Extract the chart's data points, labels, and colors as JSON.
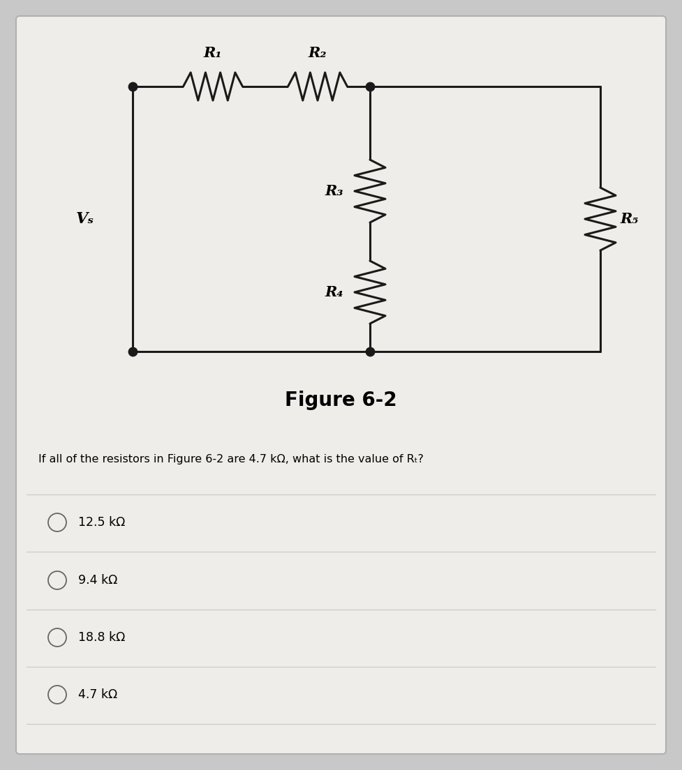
{
  "bg_color": "#c8c8c8",
  "card_color": "#eeede9",
  "figure_title": "Figure 6-2",
  "question_text": "If all of the resistors in Figure 6-2 are 4.7 kΩ, what is the value of Rₜ?",
  "choices": [
    "12.5 kΩ",
    "9.4 kΩ",
    "18.8 kΩ",
    "4.7 kΩ"
  ],
  "r1_label": "R₁",
  "r2_label": "R₂",
  "r3_label": "R₃",
  "r4_label": "R₄",
  "r5_label": "R₅",
  "vs_label": "Vₛ",
  "line_color": "#cccccc",
  "wire_color": "#1a1a1a",
  "lw": 2.2
}
